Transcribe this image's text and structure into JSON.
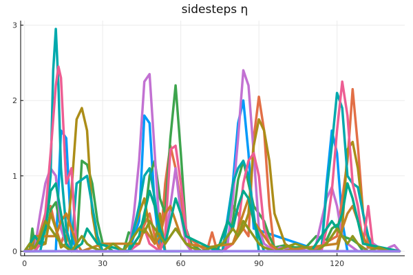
{
  "chart_data": {
    "type": "line",
    "title": "sidesteps η",
    "xlabel": "",
    "ylabel": "",
    "xlim": [
      -1.5,
      146
    ],
    "ylim": [
      -0.06,
      3.06
    ],
    "xticks": [
      0,
      30,
      60,
      90,
      120
    ],
    "yticks": [
      0,
      1,
      2,
      3
    ],
    "grid": true,
    "legend": "none",
    "series": [
      {
        "color": "#009af9",
        "x": [
          0,
          12,
          14,
          16,
          18,
          20,
          40,
          44,
          46,
          48,
          50,
          52,
          76,
          80,
          82,
          84,
          86,
          88,
          114,
          116,
          118,
          120,
          122,
          124,
          144
        ],
        "y": [
          0,
          0,
          1.6,
          1.5,
          0.2,
          0,
          0,
          0.4,
          1.8,
          1.7,
          0.6,
          0,
          0,
          0.9,
          1.7,
          2.0,
          1.3,
          0.3,
          0,
          0.9,
          1.6,
          1.3,
          0.4,
          0,
          0
        ]
      },
      {
        "color": "#e26f46",
        "x": [
          0,
          4,
          8,
          10,
          12,
          14,
          16,
          18,
          40,
          44,
          48,
          50,
          52,
          54,
          56,
          58,
          62,
          70,
          72,
          74,
          80,
          82,
          84,
          86,
          88,
          90,
          92,
          94,
          96,
          110,
          120,
          124,
          126,
          128,
          130,
          132,
          134,
          144
        ],
        "y": [
          0,
          0,
          0.5,
          0.6,
          0.3,
          0.1,
          0.3,
          0,
          0,
          0.2,
          0.5,
          0.2,
          0,
          0.9,
          1.4,
          1.1,
          0.2,
          0,
          0.25,
          0,
          0.6,
          0.5,
          0.3,
          0.2,
          1.5,
          2.05,
          1.6,
          0.6,
          0,
          0,
          0.2,
          1.2,
          2.15,
          1.4,
          0.5,
          0.1,
          0,
          0
        ]
      },
      {
        "color": "#3da44d",
        "x": [
          0,
          2,
          3,
          4,
          6,
          8,
          10,
          12,
          14,
          16,
          18,
          20,
          22,
          24,
          26,
          28,
          30,
          34,
          38,
          40,
          42,
          46,
          48,
          50,
          52,
          54,
          56,
          58,
          60,
          62,
          64,
          68,
          72,
          76,
          80,
          82,
          84,
          86,
          88,
          90,
          92,
          94,
          96,
          100,
          104,
          108,
          112,
          116,
          118,
          120,
          122,
          126,
          128,
          130,
          144
        ],
        "y": [
          0,
          0,
          0.3,
          0.05,
          0.15,
          0.1,
          0.55,
          0.65,
          0.3,
          0.1,
          0,
          0.05,
          1.2,
          1.15,
          0.9,
          0.4,
          0.1,
          0,
          0,
          0.25,
          0.2,
          0.4,
          1.0,
          1.2,
          0.7,
          0.5,
          1.5,
          2.2,
          1.3,
          0.3,
          0.1,
          0,
          0.05,
          0,
          0.4,
          0.95,
          1.2,
          0.9,
          0.6,
          0.5,
          0.4,
          0.2,
          0.05,
          0.08,
          0.05,
          0.05,
          0.2,
          0.15,
          0.3,
          0.35,
          0.2,
          0.15,
          0.1,
          0,
          0
        ]
      },
      {
        "color": "#c271d2",
        "x": [
          0,
          4,
          6,
          8,
          10,
          12,
          14,
          16,
          18,
          20,
          40,
          42,
          44,
          46,
          48,
          50,
          52,
          54,
          56,
          58,
          60,
          62,
          64,
          76,
          78,
          80,
          82,
          84,
          86,
          88,
          90,
          92,
          94,
          96,
          98,
          110,
          112,
          114,
          116,
          118,
          120,
          122,
          124,
          126,
          128,
          130,
          134,
          138,
          140,
          142,
          144
        ],
        "y": [
          0,
          0.05,
          0.5,
          0.9,
          1.1,
          1.0,
          0.3,
          0.1,
          0.05,
          0,
          0,
          0.5,
          1.2,
          2.25,
          2.35,
          1.3,
          0.2,
          0.1,
          0.6,
          1.1,
          0.5,
          0.1,
          0,
          0,
          0.1,
          0.7,
          1.5,
          2.4,
          2.2,
          1.3,
          0.3,
          0.1,
          0.05,
          0,
          0.05,
          0,
          0.1,
          0.4,
          0.7,
          0.85,
          0.6,
          0.2,
          0.1,
          0.05,
          0,
          0,
          0.1,
          0,
          0.05,
          0.08,
          0
        ]
      },
      {
        "color": "#ac8d18",
        "x": [
          0,
          8,
          10,
          12,
          14,
          16,
          18,
          20,
          22,
          24,
          26,
          28,
          30,
          40,
          42,
          44,
          46,
          48,
          50,
          52,
          54,
          76,
          80,
          84,
          86,
          88,
          90,
          92,
          94,
          96,
          100,
          104,
          120,
          122,
          124,
          126,
          128,
          130,
          132,
          134,
          144
        ],
        "y": [
          0,
          0.1,
          0.5,
          0.3,
          0.05,
          0.1,
          0.8,
          1.75,
          1.9,
          1.6,
          0.5,
          0.1,
          0,
          0,
          0.3,
          0.5,
          0.7,
          0.3,
          0.1,
          0.5,
          0,
          0,
          0.1,
          0.3,
          0.5,
          1.4,
          1.75,
          1.6,
          1.2,
          0.5,
          0.1,
          0,
          0,
          0.3,
          1.35,
          1.45,
          1.1,
          0.5,
          0.2,
          0.05,
          0
        ]
      },
      {
        "color": "#00a9ad",
        "x": [
          0,
          6,
          8,
          10,
          11,
          12,
          13,
          14,
          16,
          18,
          20,
          22,
          24,
          26,
          28,
          30,
          40,
          42,
          44,
          46,
          48,
          50,
          52,
          54,
          76,
          78,
          80,
          82,
          84,
          86,
          88,
          90,
          114,
          116,
          118,
          120,
          122,
          124,
          126,
          128,
          130,
          132,
          134,
          144
        ],
        "y": [
          0,
          0,
          0.3,
          1.0,
          2.4,
          2.95,
          2.2,
          1.1,
          0.3,
          0.05,
          0.9,
          0.95,
          1.0,
          0.6,
          0.2,
          0,
          0,
          0.3,
          0.6,
          1.0,
          1.1,
          0.7,
          0.2,
          0,
          0,
          0.4,
          0.9,
          1.1,
          1.2,
          1.0,
          0.5,
          0,
          0,
          0.8,
          1.4,
          2.1,
          1.9,
          1.0,
          0.9,
          0.85,
          0.5,
          0.2,
          0,
          0
        ]
      },
      {
        "color": "#ed5e93",
        "x": [
          0,
          4,
          6,
          8,
          10,
          12,
          13,
          14,
          16,
          18,
          20,
          40,
          44,
          46,
          48,
          52,
          54,
          56,
          58,
          60,
          62,
          64,
          76,
          80,
          82,
          84,
          86,
          88,
          90,
          92,
          94,
          96,
          114,
          116,
          118,
          120,
          122,
          124,
          126,
          128,
          130,
          132,
          134,
          144
        ],
        "y": [
          0,
          0,
          0.1,
          0.5,
          1.3,
          2.2,
          2.45,
          2.3,
          0.9,
          1.1,
          0,
          0,
          0.1,
          0.3,
          0.1,
          0,
          0.2,
          1.35,
          1.4,
          0.9,
          0.3,
          0,
          0,
          0.1,
          0.3,
          0.9,
          1.2,
          1.3,
          1.0,
          0.3,
          0.1,
          0,
          0,
          0.3,
          0.8,
          1.6,
          2.25,
          1.8,
          0.9,
          0.6,
          0.1,
          0.6,
          0,
          0
        ]
      },
      {
        "color": "#c68125",
        "x": [
          0,
          2,
          4,
          12,
          14,
          16,
          18,
          20,
          22,
          30,
          44,
          46,
          48,
          50,
          52,
          54,
          56,
          58,
          60,
          62,
          70,
          80,
          82,
          84,
          86,
          88,
          90,
          92,
          94,
          96,
          98,
          120,
          122,
          124,
          126,
          128,
          130,
          132,
          144
        ],
        "y": [
          0,
          0,
          0.2,
          0.2,
          0.4,
          0.5,
          0.3,
          0.1,
          0,
          0.1,
          0.1,
          0.3,
          0.2,
          0.1,
          0.2,
          0.5,
          0.6,
          0.4,
          0.2,
          0.1,
          0.05,
          0.1,
          0.3,
          0.5,
          0.7,
          0.4,
          0.3,
          0.2,
          0.1,
          0.05,
          0,
          0.1,
          0.3,
          0.5,
          0.6,
          0.4,
          0.2,
          0.05,
          0
        ]
      },
      {
        "color": "#00a98d",
        "x": [
          0,
          4,
          6,
          8,
          10,
          12,
          14,
          16,
          18,
          22,
          24,
          28,
          40,
          42,
          44,
          46,
          48,
          50,
          52,
          54,
          56,
          58,
          60,
          62,
          74,
          76,
          78,
          80,
          82,
          84,
          86,
          88,
          90,
          92,
          110,
          112,
          114,
          116,
          118,
          120,
          122,
          124,
          126,
          128,
          130,
          144
        ],
        "y": [
          0,
          0.2,
          0.1,
          0.3,
          0.8,
          0.9,
          0.5,
          0.1,
          0,
          0.1,
          0.3,
          0.1,
          0,
          0.1,
          0.2,
          0.5,
          0.8,
          0.6,
          0.3,
          0.1,
          0.4,
          0.7,
          0.5,
          0.2,
          0,
          0.2,
          0.4,
          0.3,
          0.6,
          0.8,
          0.7,
          0.4,
          0.2,
          0,
          0,
          0.1,
          0.2,
          0.3,
          0.4,
          0.3,
          0.5,
          0.9,
          0.7,
          0.4,
          0.1,
          0
        ]
      },
      {
        "color": "#8e971d",
        "x": [
          0,
          2,
          4,
          6,
          8,
          10,
          12,
          14,
          16,
          18,
          20,
          22,
          24,
          26,
          30,
          32,
          34,
          36,
          38,
          40,
          42,
          44,
          46,
          48,
          50,
          52,
          54,
          56,
          58,
          60,
          62,
          64,
          68,
          72,
          76,
          78,
          80,
          82,
          84,
          86,
          88,
          90,
          92,
          96,
          100,
          104,
          108,
          112,
          116,
          118,
          120,
          122,
          124,
          126,
          128,
          130,
          132,
          136,
          140,
          144
        ],
        "y": [
          0,
          0.1,
          0.05,
          0.2,
          0.4,
          0.3,
          0.2,
          0.1,
          0.05,
          0,
          0.1,
          0.2,
          0.1,
          0.05,
          0,
          0.05,
          0.1,
          0.05,
          0,
          0.1,
          0.2,
          0.3,
          0.25,
          0.4,
          0.3,
          0.2,
          0.1,
          0.2,
          0.3,
          0.2,
          0.1,
          0.05,
          0,
          0.05,
          0.1,
          0.2,
          0.3,
          0.2,
          0.4,
          0.3,
          0.2,
          0.1,
          0.05,
          0,
          0.05,
          0.1,
          0.05,
          0,
          0.1,
          0.2,
          0.3,
          0.2,
          0.1,
          0.2,
          0.1,
          0.05,
          0,
          0.05,
          0,
          0
        ]
      },
      {
        "color": "#00a8cb",
        "x": [
          0,
          144
        ],
        "y": [
          0,
          0
        ]
      },
      {
        "color": "#9b7fe9",
        "x": [
          0,
          144
        ],
        "y": [
          0,
          0
        ]
      }
    ]
  }
}
